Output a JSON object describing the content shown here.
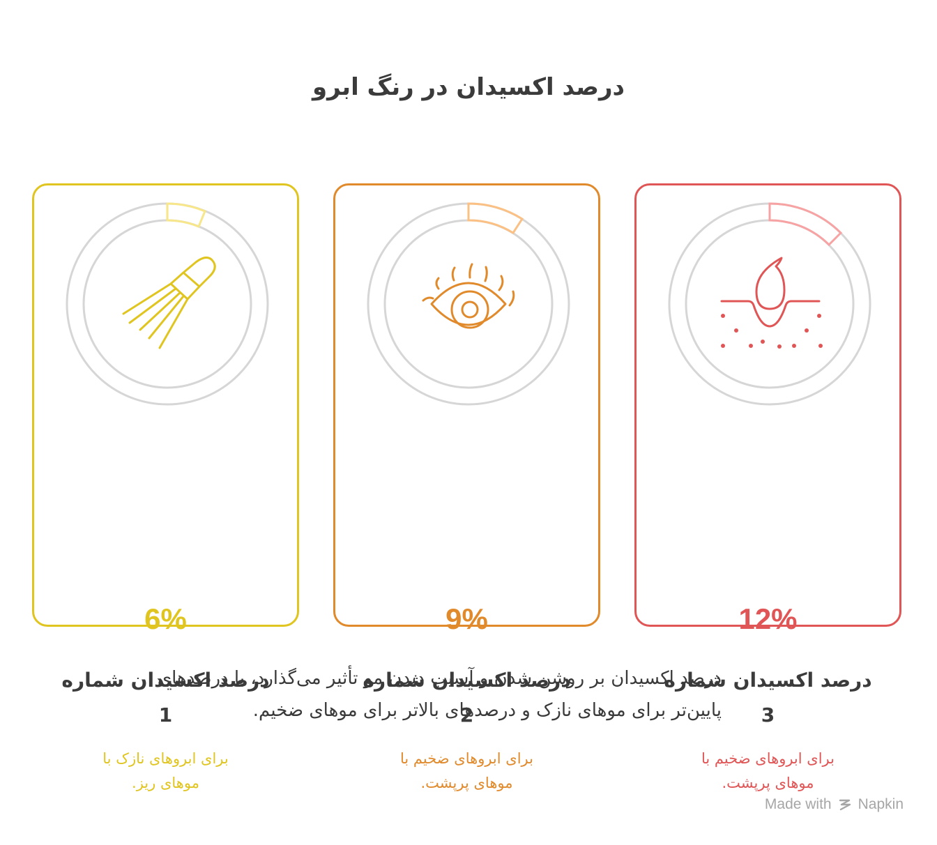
{
  "title": "درصد اکسیدان در رنگ ابرو",
  "cards": [
    {
      "percent": "6%",
      "value": 6,
      "title_line1": "درصد اکسیدان شماره",
      "title_line2": "1",
      "desc_line1": "برای ابروهای نازک با",
      "desc_line2": "موهای ریز.",
      "color": "#e0c520",
      "arc_color": "#f7e68a",
      "icon": "brush-icon"
    },
    {
      "percent": "9%",
      "value": 9,
      "title_line1": "درصد اکسیدان شماره",
      "title_line2": "2",
      "desc_line1": "برای ابروهای ضخیم با",
      "desc_line2": "موهای پرپشت.",
      "color": "#e08a2c",
      "arc_color": "#fbc084",
      "icon": "eye-icon"
    },
    {
      "percent": "12%",
      "value": 12,
      "title_line1": "درصد اکسیدان شماره",
      "title_line2": "3",
      "desc_line1": "برای ابروهای ضخیم با",
      "desc_line2": "موهای پرپشت.",
      "color": "#e05656",
      "arc_color": "#f7a3a3",
      "icon": "skin-drop-icon"
    }
  ],
  "summary_line1": "درصد اکسیدان بر روشن شدن و آسیب دیدن مو تأثیر می‌گذارد، با درصدهای",
  "summary_line2": "پایین‌تر برای موهای نازک و درصدهای بالاتر برای موهای ضخیم.",
  "footer": "Made with",
  "footer_brand": "Napkin"
}
